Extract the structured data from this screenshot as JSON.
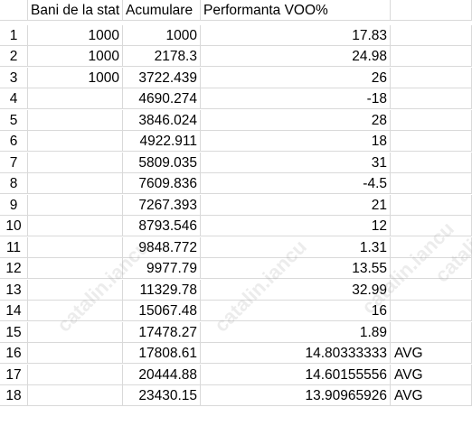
{
  "headers": {
    "row_num": "",
    "col_b": "Bani de la stat",
    "col_c": "Acumulare",
    "col_d": "Performanta VOO%",
    "col_e": ""
  },
  "rows": [
    {
      "n": "1",
      "b": "1000",
      "c": "1000",
      "d": "17.83",
      "e": ""
    },
    {
      "n": "2",
      "b": "1000",
      "c": "2178.3",
      "d": "24.98",
      "e": ""
    },
    {
      "n": "3",
      "b": "1000",
      "c": "3722.439",
      "d": "26",
      "e": ""
    },
    {
      "n": "4",
      "b": "",
      "c": "4690.274",
      "d": "-18",
      "e": ""
    },
    {
      "n": "5",
      "b": "",
      "c": "3846.024",
      "d": "28",
      "e": ""
    },
    {
      "n": "6",
      "b": "",
      "c": "4922.911",
      "d": "18",
      "e": ""
    },
    {
      "n": "7",
      "b": "",
      "c": "5809.035",
      "d": "31",
      "e": ""
    },
    {
      "n": "8",
      "b": "",
      "c": "7609.836",
      "d": "-4.5",
      "e": ""
    },
    {
      "n": "9",
      "b": "",
      "c": "7267.393",
      "d": "21",
      "e": ""
    },
    {
      "n": "10",
      "b": "",
      "c": "8793.546",
      "d": "12",
      "e": ""
    },
    {
      "n": "11",
      "b": "",
      "c": "9848.772",
      "d": "1.31",
      "e": ""
    },
    {
      "n": "12",
      "b": "",
      "c": "9977.79",
      "d": "13.55",
      "e": ""
    },
    {
      "n": "13",
      "b": "",
      "c": "11329.78",
      "d": "32.99",
      "e": ""
    },
    {
      "n": "14",
      "b": "",
      "c": "15067.48",
      "d": "16",
      "e": ""
    },
    {
      "n": "15",
      "b": "",
      "c": "17478.27",
      "d": "1.89",
      "e": ""
    },
    {
      "n": "16",
      "b": "",
      "c": "17808.61",
      "d": "14.80333333",
      "e": "AVG"
    },
    {
      "n": "17",
      "b": "",
      "c": "20444.88",
      "d": "14.60155556",
      "e": "AVG"
    },
    {
      "n": "18",
      "b": "",
      "c": "23430.15",
      "d": "13.90965926",
      "e": "AVG"
    }
  ],
  "watermark": "catalin.iancu"
}
